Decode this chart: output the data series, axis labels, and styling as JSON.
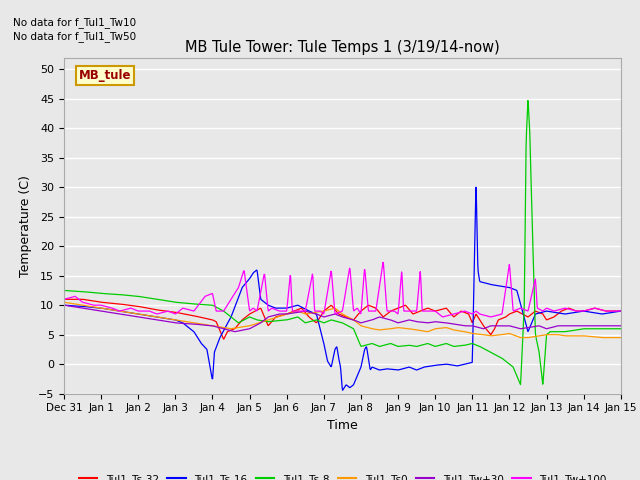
{
  "title": "MB Tule Tower: Tule Temps 1 (3/19/14-now)",
  "xlabel": "Time",
  "ylabel": "Temperature (C)",
  "ylim": [
    -5,
    52
  ],
  "yticks": [
    -5,
    0,
    5,
    10,
    15,
    20,
    25,
    30,
    35,
    40,
    45,
    50
  ],
  "bg_color": "#e8e8e8",
  "no_data_text1": "No data for f_Tul1_Tw10",
  "no_data_text2": "No data for f_Tul1_Tw50",
  "legend_box_label": "MB_tule",
  "legend_box_color": "#ffffcc",
  "legend_box_border": "#cc9900",
  "legend_box_text": "#990000",
  "series_colors": {
    "Tul1_Ts-32": "#ff0000",
    "Tul1_Ts-16": "#0000ff",
    "Tul1_Ts-8": "#00cc00",
    "Tul1_Ts0": "#ff9900",
    "Tul1_Tw+30": "#9900cc",
    "Tul1_Tw+100": "#ff00ff"
  },
  "xtick_labels": [
    "Dec 31",
    "Jan 1",
    "Jan 2",
    "Jan 3",
    "Jan 4",
    "Jan 5",
    "Jan 6",
    "Jan 7",
    "Jan 8",
    "Jan 9",
    "Jan 10",
    "Jan 11",
    "Jan 12",
    "Jan 13",
    "Jan 14",
    "Jan 15"
  ]
}
